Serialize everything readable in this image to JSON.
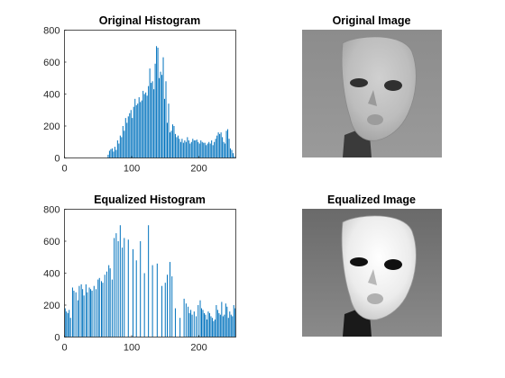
{
  "colors": {
    "bar": "#0072BD",
    "axis": "#262626",
    "background": "#ffffff"
  },
  "chart_data": [
    {
      "type": "bar",
      "title": "Original Histogram",
      "xlabel": "",
      "ylabel": "",
      "xlim": [
        0,
        255
      ],
      "ylim": [
        0,
        800
      ],
      "xticks": [
        0,
        100,
        200
      ],
      "yticks": [
        0,
        200,
        400,
        600,
        800
      ],
      "grid": false,
      "x": [
        65,
        67,
        69,
        71,
        73,
        75,
        77,
        79,
        81,
        83,
        85,
        87,
        89,
        91,
        93,
        95,
        97,
        99,
        101,
        103,
        105,
        107,
        109,
        111,
        113,
        115,
        117,
        119,
        121,
        123,
        125,
        127,
        129,
        131,
        133,
        135,
        137,
        139,
        141,
        143,
        145,
        147,
        149,
        151,
        153,
        155,
        157,
        159,
        161,
        163,
        165,
        167,
        169,
        171,
        173,
        175,
        177,
        179,
        181,
        183,
        185,
        187,
        189,
        191,
        193,
        195,
        197,
        199,
        201,
        203,
        205,
        207,
        209,
        211,
        213,
        215,
        217,
        219,
        221,
        223,
        225,
        227,
        229,
        231,
        233,
        235,
        237,
        239,
        241,
        243,
        245,
        247,
        249,
        251,
        253
      ],
      "values": [
        20,
        45,
        55,
        60,
        40,
        70,
        50,
        110,
        90,
        140,
        130,
        200,
        170,
        250,
        220,
        260,
        280,
        300,
        250,
        320,
        370,
        330,
        340,
        380,
        350,
        360,
        420,
        400,
        410,
        390,
        450,
        560,
        470,
        480,
        430,
        590,
        700,
        690,
        500,
        540,
        520,
        630,
        370,
        480,
        220,
        340,
        160,
        170,
        210,
        200,
        150,
        130,
        140,
        120,
        100,
        120,
        95,
        110,
        100,
        130,
        110,
        90,
        100,
        120,
        110,
        110,
        115,
        100,
        90,
        110,
        100,
        95,
        95,
        80,
        90,
        100,
        90,
        110,
        80,
        100,
        120,
        140,
        160,
        150,
        160,
        130,
        100,
        90,
        170,
        180,
        120,
        60,
        50,
        30,
        10
      ]
    },
    {
      "type": "image",
      "title": "Original Image"
    },
    {
      "type": "bar",
      "title": "Equalized Histogram",
      "xlabel": "",
      "ylabel": "",
      "xlim": [
        0,
        255
      ],
      "ylim": [
        0,
        800
      ],
      "xticks": [
        0,
        100,
        200
      ],
      "yticks": [
        0,
        200,
        400,
        600,
        800
      ],
      "grid": false,
      "x": [
        1,
        3,
        5,
        7,
        9,
        12,
        14,
        17,
        20,
        22,
        25,
        27,
        29,
        32,
        34,
        37,
        39,
        41,
        44,
        47,
        50,
        52,
        55,
        57,
        60,
        63,
        66,
        68,
        71,
        74,
        77,
        80,
        83,
        86,
        89,
        95,
        102,
        107,
        113,
        119,
        125,
        131,
        138,
        145,
        150,
        153,
        157,
        160,
        165,
        172,
        178,
        181,
        184,
        186,
        188,
        190,
        193,
        196,
        199,
        202,
        204,
        206,
        208,
        210,
        212,
        214,
        216,
        218,
        220,
        222,
        224,
        226,
        228,
        230,
        232,
        234,
        236,
        238,
        240,
        242,
        244,
        246,
        248,
        250,
        252,
        254
      ],
      "values": [
        180,
        160,
        150,
        170,
        120,
        310,
        290,
        280,
        230,
        320,
        330,
        300,
        260,
        330,
        280,
        310,
        300,
        290,
        320,
        300,
        360,
        370,
        350,
        340,
        390,
        410,
        450,
        430,
        360,
        620,
        650,
        600,
        700,
        560,
        620,
        610,
        550,
        480,
        600,
        400,
        700,
        450,
        460,
        320,
        340,
        390,
        470,
        380,
        180,
        120,
        240,
        210,
        190,
        150,
        170,
        140,
        160,
        130,
        200,
        230,
        180,
        170,
        150,
        140,
        110,
        160,
        150,
        130,
        120,
        100,
        110,
        200,
        170,
        150,
        140,
        220,
        130,
        140,
        210,
        190,
        120,
        160,
        140,
        130,
        200,
        180
      ]
    },
    {
      "type": "image",
      "title": "Equalized Image"
    }
  ]
}
